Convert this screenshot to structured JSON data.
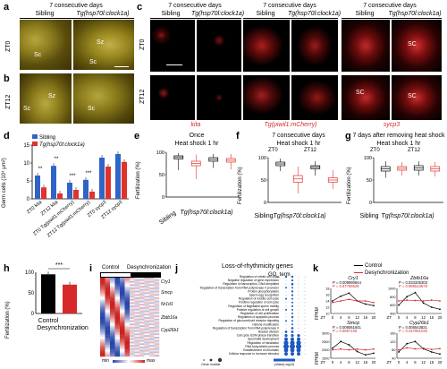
{
  "panel_letters": {
    "a": "a",
    "b": "b",
    "c": "c",
    "d": "d",
    "e": "e",
    "f": "f",
    "g": "g",
    "h": "h",
    "i": "i",
    "j": "j",
    "k": "k"
  },
  "panel_a": {
    "title": "7 consecutive days",
    "col_sibling": "Sibling",
    "col_tg": "Tg(hsp70l:clock1a)",
    "row_label": "ZT0",
    "label_sc_left": "Sc",
    "label_sz": "Sz",
    "label_sc_right": "Sc"
  },
  "panel_b": {
    "row_label": "ZT12",
    "label_sc_left": "Sc",
    "label_sz": "Sz",
    "label_sc_right": "Sc"
  },
  "panel_c": {
    "title1": "7 consecutive days",
    "title2": "7 consecutive days",
    "title3": "7 consecutive days",
    "sib1": "Sibling",
    "tg1": "Tg(hsp70l:clock1a)",
    "sib2": "Sibling",
    "tg2": "Tg(hsp70l:clock1a)",
    "sib3": "Sibling",
    "tg3": "Tg(hsp70l:clock1a)",
    "row1": "ZT0",
    "row2": "ZT12",
    "marker1": "kita",
    "marker2": "Tg(piwil1:mCherry)",
    "marker3": "sycp3",
    "sc_top": "SC",
    "sc_bottom_left": "SC",
    "sc_bottom_right": "SC"
  },
  "panel_d": {
    "legend_sibling": "Sibling",
    "legend_tg": "Tg(hsp70l:clock1a)",
    "ylabel": "Germ cells (10⁴ μm²)",
    "yticks": [
      "15",
      "10",
      "5",
      "0"
    ],
    "stars": [
      "**",
      "**",
      "***",
      "***"
    ],
    "xlabels": [
      "ZT0 kita",
      "ZT12 kita",
      "ZT0 Tg(piwil1:mCherry)",
      "ZT12 Tg(piwil1:mCherry)",
      "ZT0 sycp3",
      "ZT12 sycp3"
    ]
  },
  "panel_e": {
    "title": "Once",
    "subtitle": "Heat shock 1 hr",
    "xlabel_sib": "Sibling",
    "xlabel_tg": "Tg(hsp70l:clock1a)",
    "zt0": "ZT0",
    "zt12": "ZT12",
    "ylabel": "Fertilization (%)",
    "yticks": [
      "100",
      "50",
      "0"
    ]
  },
  "panel_f": {
    "title": "7 consecutive days",
    "subtitle": "Heat shock 1 hr",
    "zt0": "ZT0",
    "zt12": "ZT12",
    "xlabel_sib": "Sibling",
    "xlabel_tg": "Tg(hsp70l:clock1a)",
    "ylabel": "Fertilization (%)",
    "yticks": [
      "100",
      "50",
      "0"
    ]
  },
  "panel_g": {
    "title": "7 days after removing heat shock",
    "subtitle": "Heat shock 1 hr",
    "zt0": "ZT0",
    "zt12": "ZT12",
    "xlabel_sib": "Sibling",
    "xlabel_tg": "Tg(hsp70l:clock1a)",
    "ylabel": "Fertilization (%)",
    "yticks": [
      "100",
      "50",
      "0"
    ]
  },
  "panel_h": {
    "ylabel": "Fertilization (%)",
    "yticks": [
      "100",
      "50",
      "0"
    ],
    "stars": "***",
    "x1": "Control",
    "x2": "Desynchronization"
  },
  "panel_i": {
    "control": "Control",
    "desync": "Desynchronization",
    "genes": [
      "Cry1",
      "Smcp",
      "Nr1d1",
      "Zbtb16a",
      "Cyp26b1"
    ],
    "scale_min": "min",
    "scale_max": "max"
  },
  "panel_j": {
    "title": "Loss-of-rhythmicity genes",
    "go_label": "GO_term",
    "terms": [
      "Regulation of mitotic cell cycle",
      "Negative regulation of gene expression",
      "Regulation of transcription, DNA-templated",
      "Regulation of transcription from RNA polymerase II promoter",
      "Protein phosphorylation",
      "Sperm-egg recognition",
      "Regulation of meiotic cell cycle",
      "Positive regulation of cell cycle",
      "Regulation of flagellated sperm motility",
      "Positive regulation of cell growth",
      "Regulation of cell proliferation",
      "Regulation of apoptotic process",
      "Regulation of glucocorticoid receptor signaling",
      "Histone modification",
      "Regulation of transcription from RNA polymerase II",
      "Nuclear division",
      "Cell cycle G2/M phase transition",
      "Spermatid development",
      "Regulation of translation",
      "RNA biosynthetic process",
      "Establishment of chromatin",
      "Cellular response to hormone stimulus"
    ],
    "legend_count": "Gene number",
    "legend_p": "pValue(-log10)"
  },
  "panel_k": {
    "legend_control": "Control",
    "legend_desync": "Desynchronization",
    "ylabel": "FPKM",
    "xlabel": "ZT",
    "xticks": [
      "0",
      "4",
      "8",
      "12",
      "16",
      "20"
    ],
    "charts": [
      {
        "gene": "Cry1",
        "p_control": "P = 0.009990844",
        "p_desync": "P = 0.87759539",
        "yticks": [
          "18",
          "16",
          "14",
          "12",
          "10"
        ]
      },
      {
        "gene": "Zbtb16a",
        "p_control": "P = 0.033335303",
        "p_desync": "P = 0.996510678",
        "yticks": [
          "1000",
          "800",
          "600",
          "400"
        ]
      },
      {
        "gene": "Smcp",
        "p_control": "P = 0.008061641",
        "p_desync": "P = 0.9997108",
        "yticks": [
          "3000",
          "2500",
          "2000",
          "1500"
        ]
      },
      {
        "gene": "Cyp26b1",
        "p_control": "P = 0.005543821",
        "p_desync": "P = 0.447991035",
        "yticks": [
          "160",
          "120",
          "80",
          "40"
        ]
      }
    ]
  },
  "colors": {
    "sibling_blue": "#2f64c8",
    "tg_red": "#e0322b",
    "desync_red": "#d62a2a",
    "control_black": "#000000",
    "heat_blue": "#2844a8",
    "heat_red": "#c8201e",
    "go_blue": "#1b5bbf"
  },
  "chart_data": [
    {
      "type": "bar",
      "panel": "d",
      "categories": [
        "ZT0 kita",
        "ZT12 kita",
        "ZT0 Tg(piwil1:mCherry)",
        "ZT12 Tg(piwil1:mCherry)",
        "ZT0 sycp3",
        "ZT12 sycp3"
      ],
      "series": [
        {
          "name": "Sibling",
          "values": [
            6.5,
            9.2,
            4.5,
            5.3,
            11.5,
            12.5
          ]
        },
        {
          "name": "Tg(hsp70l:clock1a)",
          "values": [
            3.2,
            1.5,
            2.5,
            2.0,
            9.0,
            10.3
          ]
        }
      ],
      "ylabel": "Germ cells (10⁴ μm²)",
      "ylim": [
        0,
        15
      ]
    },
    {
      "type": "bar",
      "panel": "h",
      "categories": [
        "Control",
        "Desynchronization"
      ],
      "values": [
        95,
        70
      ],
      "ylabel": "Fertilization (%)",
      "ylim": [
        0,
        100
      ]
    },
    {
      "type": "line",
      "panel": "k",
      "x": [
        0,
        4,
        8,
        12,
        16,
        20
      ],
      "xlabel": "ZT",
      "ylabel": "FPKM",
      "charts": [
        {
          "gene": "Cry1",
          "series": [
            {
              "name": "Control",
              "values": [
                14,
                15.5,
                16.5,
                14,
                13,
                12.5
              ]
            },
            {
              "name": "Desynchronization",
              "values": [
                13.5,
                14,
                14.5,
                14,
                14,
                13.5
              ]
            }
          ]
        },
        {
          "gene": "Zbtb16a",
          "series": [
            {
              "name": "Control",
              "values": [
                600,
                800,
                900,
                650,
                550,
                500
              ]
            },
            {
              "name": "Desynchronization",
              "values": [
                700,
                720,
                710,
                700,
                720,
                700
              ]
            }
          ]
        },
        {
          "gene": "Smcp",
          "series": [
            {
              "name": "Control",
              "values": [
                2100,
                2500,
                2300,
                1900,
                1700,
                1800
              ]
            },
            {
              "name": "Desynchronization",
              "values": [
                2000,
                2050,
                2000,
                2050,
                2000,
                2050
              ]
            }
          ]
        },
        {
          "gene": "Cyp26b1",
          "series": [
            {
              "name": "Control",
              "values": [
                70,
                110,
                120,
                85,
                70,
                60
              ]
            },
            {
              "name": "Desynchronization",
              "values": [
                80,
                90,
                85,
                88,
                82,
                86
              ]
            }
          ]
        }
      ]
    }
  ]
}
